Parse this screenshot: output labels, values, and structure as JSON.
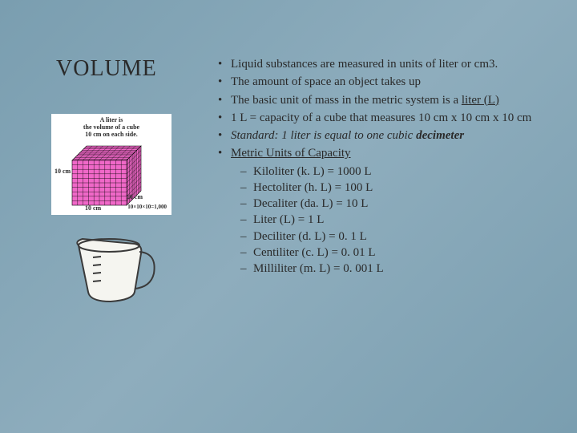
{
  "title": "VOLUME",
  "cube": {
    "caption_l1": "A liter is",
    "caption_l2": "the volume of a cube",
    "caption_l3": "10 cm on each side.",
    "label_left": "10\ncm",
    "label_bottom": "10 cm",
    "label_right": "10 cm",
    "math": "10×10×10=1,000",
    "face_color": "#f068c8",
    "grid_color": "#000000",
    "bg_color": "#ffffff"
  },
  "cup": {
    "stroke": "#3a3a3a",
    "fill": "#f5f5f0"
  },
  "bullets": [
    {
      "pre": "Liquid substances are measured in units of liter or cm3."
    },
    {
      "pre": "The amount of space an object takes up"
    },
    {
      "pre": "The basic unit of mass in the metric system is a ",
      "u": "liter (L)"
    },
    {
      "pre": "1 L = capacity of a cube that measures 10 cm x 10 cm x 10 cm"
    },
    {
      "i_pre": "Standard: 1 liter is equal to one cubic ",
      "bi": "decimeter"
    },
    {
      "u": "Metric Units of Capacity"
    }
  ],
  "sub": [
    "Kiloliter (k. L) = 1000 L",
    "Hectoliter (h. L) = 100 L",
    "Decaliter (da. L) = 10 L",
    "Liter (L) = 1 L",
    "Deciliter (d. L) = 0. 1 L",
    "Centiliter (c. L) = 0. 01 L",
    "Milliliter (m. L) = 0. 001 L"
  ]
}
